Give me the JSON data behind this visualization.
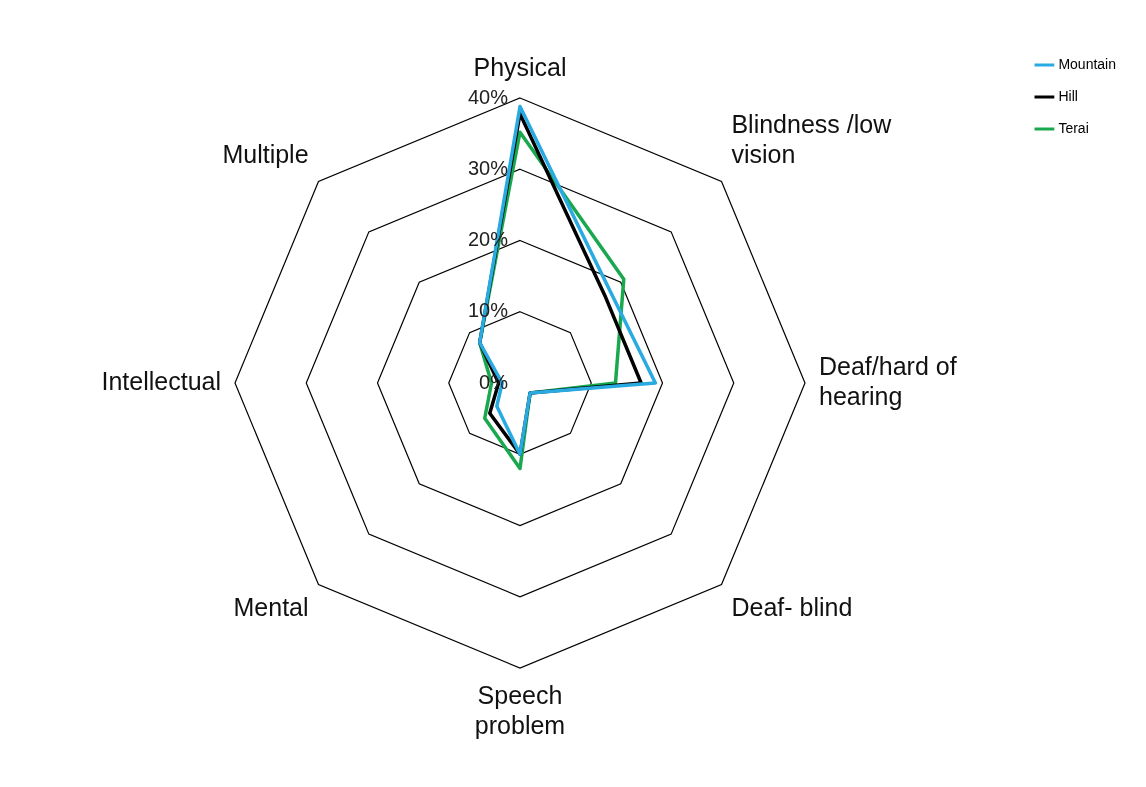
{
  "chart_data": {
    "type": "radar",
    "categories": [
      "Physical",
      "Blindness /low vision",
      "Deaf/hard of hearing",
      "Deaf- blind",
      "Speech problem",
      "Mental",
      "Intellectual",
      "Multiple"
    ],
    "series": [
      {
        "name": "Mountain",
        "color": "#29abe2",
        "values": [
          38.8,
          18,
          19,
          2,
          10,
          4.6,
          2.5,
          8
        ]
      },
      {
        "name": "Hill",
        "color": "#000000",
        "values": [
          37.8,
          17,
          17,
          2,
          10,
          6,
          3,
          8
        ]
      },
      {
        "name": "Terai",
        "color": "#1aa84f",
        "values": [
          35.2,
          20.6,
          13.4,
          2,
          12,
          7,
          4,
          8
        ]
      }
    ],
    "ylim": [
      0,
      40
    ],
    "yticks": [
      {
        "value": 0,
        "label": "0%"
      },
      {
        "value": 10,
        "label": "10%"
      },
      {
        "value": 20,
        "label": "20%"
      },
      {
        "value": 30,
        "label": "30%"
      },
      {
        "value": 40,
        "label": "40%"
      }
    ],
    "grid": true,
    "legend": "top right",
    "marker": "none"
  }
}
